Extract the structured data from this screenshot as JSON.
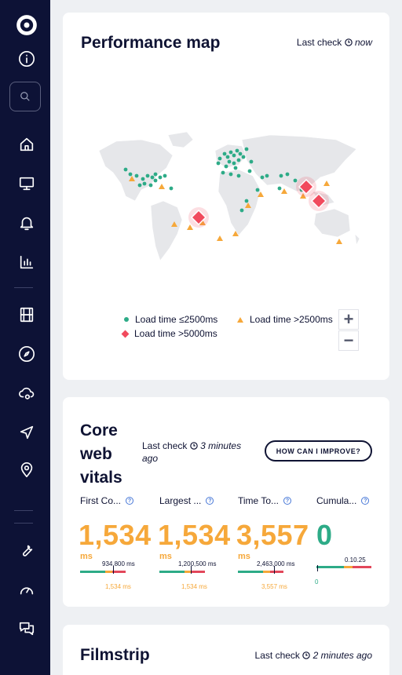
{
  "sidebar": {
    "items": [
      {
        "name": "info-icon"
      },
      {
        "name": "search-icon"
      },
      {
        "name": "home-icon"
      },
      {
        "name": "monitor-icon"
      },
      {
        "name": "bell-icon"
      },
      {
        "name": "bar-chart-icon"
      },
      {
        "name": "film-icon"
      },
      {
        "name": "compass-icon"
      },
      {
        "name": "cloud-gear-icon"
      },
      {
        "name": "send-icon"
      },
      {
        "name": "location-pin-icon"
      },
      {
        "name": "wrench-icon"
      },
      {
        "name": "gauge-icon"
      },
      {
        "name": "chat-icon"
      }
    ]
  },
  "performance_map": {
    "title": "Performance map",
    "last_check_label": "Last check",
    "last_check_value": "now",
    "legend": {
      "green": "Load time ≤2500ms",
      "orange": "Load time >2500ms",
      "red": "Load time >5000ms"
    },
    "zoom_in": "+",
    "zoom_out": "−",
    "colors": {
      "good": "#2dab87",
      "warn": "#f6a83a",
      "bad": "#f14a5d"
    }
  },
  "core_web_vitals": {
    "title_line1": "Core",
    "title_line2": "web",
    "title_line3": "vitals",
    "last_check_label": "Last check",
    "last_check_value_line1": "3 minutes",
    "last_check_value_line2": "ago",
    "improve_button": "HOW CAN I IMPROVE?",
    "metrics": [
      {
        "label": "First Co...",
        "value": "1,534",
        "unit": "ms",
        "ticks": "934,800 ms",
        "under": "1,534 ms",
        "status": "warn"
      },
      {
        "label": "Largest ...",
        "value": "1,534",
        "unit": "ms",
        "ticks": "1,200,500 ms",
        "under": "1,534 ms",
        "status": "warn"
      },
      {
        "label": "Time To...",
        "value": "3,557",
        "unit": "ms",
        "ticks": "2,463,000 ms",
        "under": "3,557 ms",
        "status": "warn"
      },
      {
        "label": "Cumula...",
        "value": "0",
        "unit": "",
        "ticks": "0.10.25",
        "under": "0",
        "status": "good"
      }
    ]
  },
  "filmstrip": {
    "title": "Filmstrip",
    "last_check_label": "Last check",
    "last_check_value": "2 minutes ago"
  }
}
